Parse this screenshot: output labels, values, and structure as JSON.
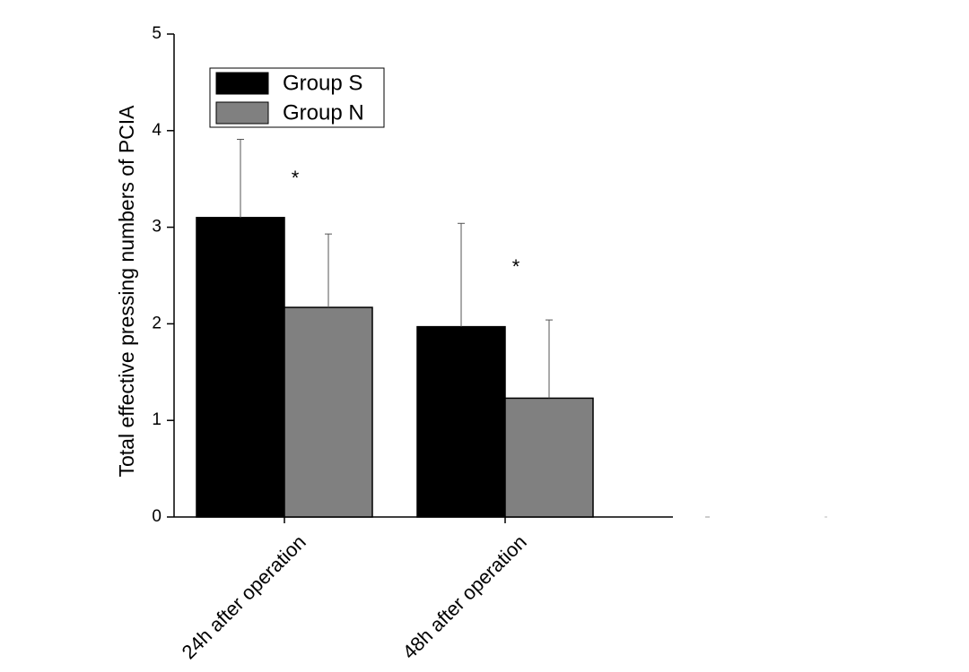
{
  "chart_data": {
    "type": "bar",
    "title": "",
    "xlabel": "",
    "ylabel": "Total effective pressing numbers of PCIA",
    "ylim": [
      0,
      5
    ],
    "yticks": [
      0,
      1,
      2,
      3,
      4,
      5
    ],
    "categories": [
      "24h after operation",
      "48h after operation"
    ],
    "series": [
      {
        "name": "Group S",
        "color": "#000000",
        "values": [
          3.1,
          1.97
        ],
        "errors": [
          0.81,
          1.07
        ]
      },
      {
        "name": "Group N",
        "color": "#808080",
        "values": [
          2.17,
          1.23
        ],
        "errors": [
          0.76,
          0.81
        ]
      }
    ],
    "annotations": [
      "*",
      "*"
    ],
    "legend_position": "top-left",
    "grid": false
  }
}
